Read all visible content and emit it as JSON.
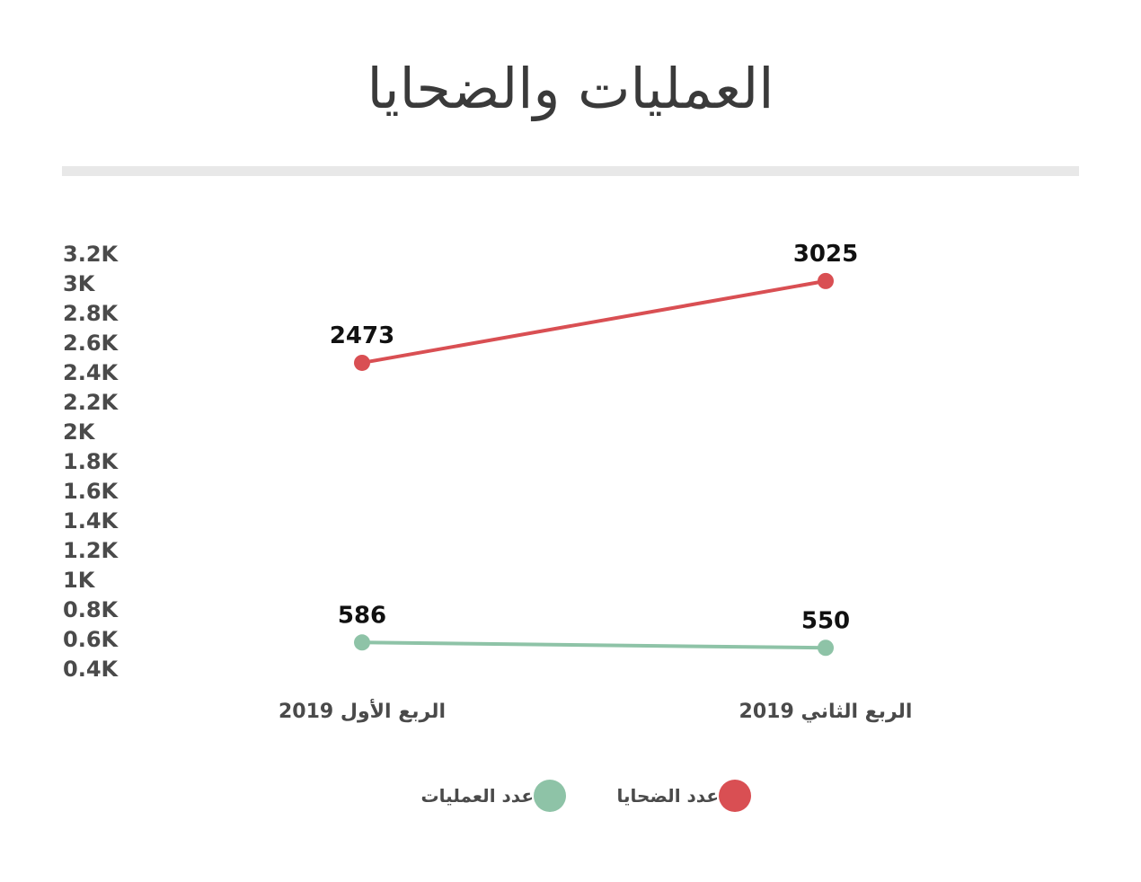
{
  "title": "العمليات والضحايا",
  "chart_data": {
    "type": "line",
    "categories": [
      "الربع الأول 2019",
      "الربع الثاني 2019"
    ],
    "y_ticks": [
      "3.2K",
      "3K",
      "2.8K",
      "2.6K",
      "2.4K",
      "2.2K",
      "2K",
      "1.8K",
      "1.6K",
      "1.4K",
      "1.2K",
      "1K",
      "0.8K",
      "0.6K",
      "0.4K"
    ],
    "ylim": [
      400,
      3200
    ],
    "grid": false,
    "legend_position": "bottom",
    "series": [
      {
        "name": "عدد الضحايا",
        "values": [
          2473,
          3025
        ],
        "labels": [
          "2473",
          "3025"
        ],
        "color": "#d94f53"
      },
      {
        "name": "عدد العمليات",
        "values": [
          586,
          550
        ],
        "labels": [
          "586",
          "550"
        ],
        "color": "#8ec3a7"
      }
    ]
  }
}
